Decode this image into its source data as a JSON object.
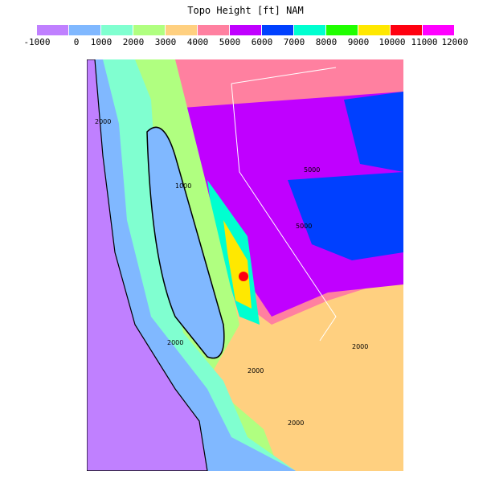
{
  "title": "Topo Height [ft]   NAM",
  "colorbar": {
    "colors": [
      "#c080ff",
      "#80b8ff",
      "#80ffd0",
      "#b0ff80",
      "#ffd080",
      "#ff80a0",
      "#c000ff",
      "#0040ff",
      "#00ffd0",
      "#20ff00",
      "#ffe800",
      "#ff0010",
      "#ff00ff"
    ],
    "labels": [
      "-1000",
      "0",
      "1000",
      "2000",
      "3000",
      "4000",
      "5000",
      "6000",
      "7000",
      "8000",
      "9000",
      "10000",
      "11000",
      "12000"
    ]
  },
  "map": {
    "contour_labels": [
      "2000",
      "2000",
      "1000",
      "5000",
      "5000",
      "2000",
      "2000",
      "2000"
    ]
  }
}
